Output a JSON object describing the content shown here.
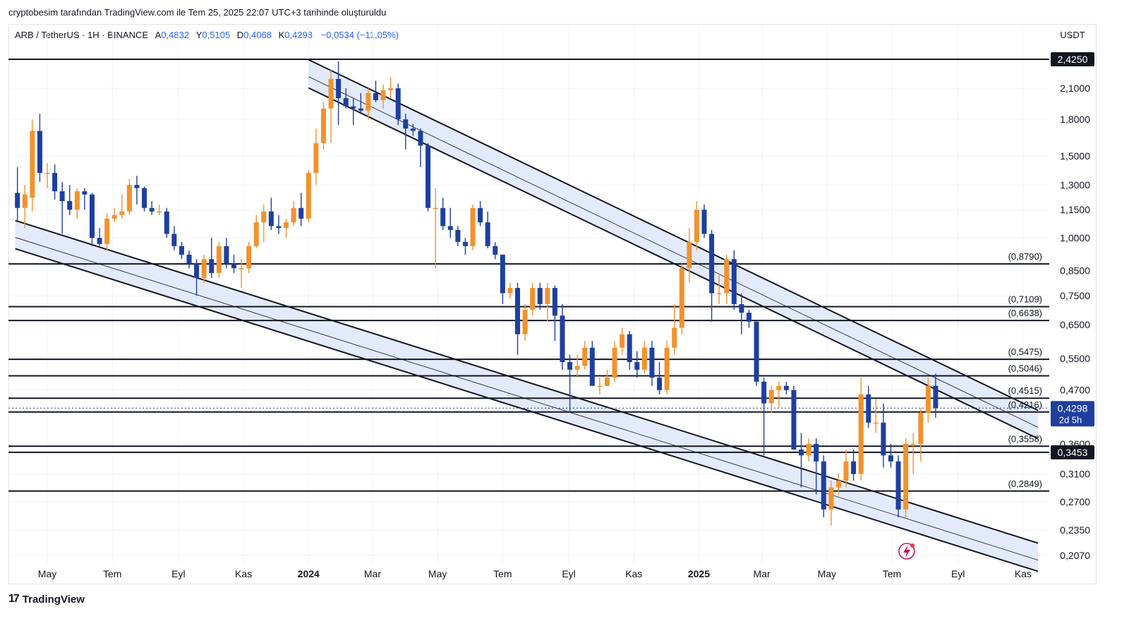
{
  "attribution": "cryptobesim tarafından TradingView.com ile Tem 25, 2025 22:07 UTC+3 tarihinde oluşturuldu",
  "legend": {
    "symbol": "ARB / TetherUS · 1H · BINANCE",
    "open_label": "A",
    "open_value": "0,4832",
    "high_label": "Y",
    "high_value": "0,5105",
    "low_label": "D",
    "low_value": "0,4068",
    "close_label": "K",
    "close_value": "0,4298",
    "change": "−0,0534 (−11,05%)"
  },
  "currency": "USDT",
  "footer": {
    "logo_mark": "17",
    "brand": "TradingView"
  },
  "colors": {
    "up": "#f2922d",
    "down": "#1e3fa0",
    "channel_fill": "#dde6fb",
    "line": "#131722",
    "price_tag": "#1e3fa0"
  },
  "chart_data": {
    "type": "candlestick",
    "scale": "log",
    "price_axis": {
      "ticks": [
        "2,1000",
        "1,8000",
        "1,5000",
        "1,3000",
        "1,1500",
        "1,0000",
        "0,8500",
        "0,7500",
        "0,6500",
        "0,5500",
        "0,4700",
        "0,3600",
        "0,3100",
        "0,2700",
        "0,2350",
        "0,2070"
      ],
      "tick_values": [
        2.1,
        1.8,
        1.5,
        1.3,
        1.15,
        1.0,
        0.85,
        0.75,
        0.65,
        0.55,
        0.47,
        0.36,
        0.31,
        0.27,
        0.235,
        0.207
      ]
    },
    "time_axis": {
      "labels": [
        "May",
        "Tem",
        "Eyl",
        "Kas",
        "2024",
        "Mar",
        "May",
        "Tem",
        "Eyl",
        "Kas",
        "2025",
        "Mar",
        "May",
        "Tem",
        "Eyl",
        "Kas"
      ],
      "bold": [
        false,
        false,
        false,
        false,
        true,
        false,
        false,
        false,
        false,
        false,
        true,
        false,
        false,
        false,
        false,
        false
      ]
    },
    "horizontal_levels": [
      {
        "value": 2.425,
        "label": "2,4250",
        "tagged": true
      },
      {
        "value": 0.879,
        "label": "(0,8790)"
      },
      {
        "value": 0.7109,
        "label": "(0,7109)"
      },
      {
        "value": 0.6638,
        "label": "(0,6638)"
      },
      {
        "value": 0.5475,
        "label": "(0,5475)"
      },
      {
        "value": 0.5046,
        "label": "(0,5046)"
      },
      {
        "value": 0.4515,
        "label": "(0,4515)"
      },
      {
        "value": 0.4216,
        "label": "(0,4216)"
      },
      {
        "value": 0.3558,
        "label": "(0,3558)"
      },
      {
        "value": 0.3453,
        "label": "0,3453",
        "tagged": true
      },
      {
        "value": 0.2849,
        "label": "(0,2849)"
      }
    ],
    "current_price": {
      "value": 0.4298,
      "label": "0,4298",
      "countdown": "2d 5h"
    },
    "channels": [
      {
        "name": "descending-resistance",
        "start": {
          "date": "2024-01-01",
          "price": 2.42
        },
        "end": {
          "date": "2025-11-15",
          "price": 0.425
        }
      },
      {
        "name": "descending-support",
        "start": {
          "date": "2023-04-01",
          "price": 1.09
        },
        "end": {
          "date": "2025-11-15",
          "price": 0.22
        }
      }
    ],
    "candles": [
      {
        "d": "2023-04-03",
        "o": 1.25,
        "h": 1.42,
        "l": 1.08,
        "c": 1.16
      },
      {
        "d": "2023-04-10",
        "o": 1.16,
        "h": 1.3,
        "l": 1.05,
        "c": 1.24
      },
      {
        "d": "2023-04-17",
        "o": 1.22,
        "h": 1.8,
        "l": 1.14,
        "c": 1.7
      },
      {
        "d": "2023-04-24",
        "o": 1.7,
        "h": 1.85,
        "l": 1.32,
        "c": 1.38
      },
      {
        "d": "2023-05-01",
        "o": 1.38,
        "h": 1.45,
        "l": 1.28,
        "c": 1.38
      },
      {
        "d": "2023-05-08",
        "o": 1.38,
        "h": 1.44,
        "l": 1.21,
        "c": 1.26
      },
      {
        "d": "2023-05-15",
        "o": 1.26,
        "h": 1.32,
        "l": 1.02,
        "c": 1.2
      },
      {
        "d": "2023-05-22",
        "o": 1.2,
        "h": 1.3,
        "l": 1.12,
        "c": 1.15
      },
      {
        "d": "2023-05-29",
        "o": 1.15,
        "h": 1.28,
        "l": 1.1,
        "c": 1.26
      },
      {
        "d": "2023-06-05",
        "o": 1.26,
        "h": 1.28,
        "l": 1.15,
        "c": 1.24
      },
      {
        "d": "2023-06-12",
        "o": 1.24,
        "h": 1.25,
        "l": 0.96,
        "c": 1.0
      },
      {
        "d": "2023-06-19",
        "o": 1.0,
        "h": 1.05,
        "l": 0.96,
        "c": 0.97
      },
      {
        "d": "2023-06-26",
        "o": 0.97,
        "h": 1.13,
        "l": 0.94,
        "c": 1.1
      },
      {
        "d": "2023-07-03",
        "o": 1.1,
        "h": 1.16,
        "l": 1.08,
        "c": 1.12
      },
      {
        "d": "2023-07-10",
        "o": 1.12,
        "h": 1.24,
        "l": 1.1,
        "c": 1.14
      },
      {
        "d": "2023-07-17",
        "o": 1.14,
        "h": 1.34,
        "l": 1.12,
        "c": 1.3
      },
      {
        "d": "2023-07-24",
        "o": 1.3,
        "h": 1.36,
        "l": 1.18,
        "c": 1.28
      },
      {
        "d": "2023-07-31",
        "o": 1.28,
        "h": 1.29,
        "l": 1.14,
        "c": 1.16
      },
      {
        "d": "2023-08-07",
        "o": 1.16,
        "h": 1.2,
        "l": 1.12,
        "c": 1.14
      },
      {
        "d": "2023-08-14",
        "o": 1.14,
        "h": 1.18,
        "l": 1.12,
        "c": 1.14
      },
      {
        "d": "2023-08-21",
        "o": 1.14,
        "h": 1.16,
        "l": 1.0,
        "c": 1.02
      },
      {
        "d": "2023-08-28",
        "o": 1.02,
        "h": 1.06,
        "l": 0.94,
        "c": 0.96
      },
      {
        "d": "2023-09-04",
        "o": 0.96,
        "h": 0.98,
        "l": 0.9,
        "c": 0.92
      },
      {
        "d": "2023-09-11",
        "o": 0.92,
        "h": 0.94,
        "l": 0.86,
        "c": 0.88
      },
      {
        "d": "2023-09-18",
        "o": 0.88,
        "h": 0.9,
        "l": 0.75,
        "c": 0.82
      },
      {
        "d": "2023-09-25",
        "o": 0.82,
        "h": 0.92,
        "l": 0.8,
        "c": 0.9
      },
      {
        "d": "2023-10-02",
        "o": 0.9,
        "h": 1.0,
        "l": 0.82,
        "c": 0.84
      },
      {
        "d": "2023-10-09",
        "o": 0.84,
        "h": 0.98,
        "l": 0.82,
        "c": 0.96
      },
      {
        "d": "2023-10-16",
        "o": 0.96,
        "h": 1.0,
        "l": 0.86,
        "c": 0.88
      },
      {
        "d": "2023-10-23",
        "o": 0.88,
        "h": 0.92,
        "l": 0.84,
        "c": 0.86
      },
      {
        "d": "2023-10-30",
        "o": 0.86,
        "h": 0.9,
        "l": 0.78,
        "c": 0.86
      },
      {
        "d": "2023-11-06",
        "o": 0.86,
        "h": 0.98,
        "l": 0.84,
        "c": 0.96
      },
      {
        "d": "2023-11-13",
        "o": 0.96,
        "h": 1.12,
        "l": 0.95,
        "c": 1.08
      },
      {
        "d": "2023-11-20",
        "o": 1.08,
        "h": 1.18,
        "l": 0.98,
        "c": 1.14
      },
      {
        "d": "2023-11-27",
        "o": 1.14,
        "h": 1.22,
        "l": 1.04,
        "c": 1.06
      },
      {
        "d": "2023-12-04",
        "o": 1.06,
        "h": 1.12,
        "l": 1.02,
        "c": 1.05
      },
      {
        "d": "2023-12-11",
        "o": 1.05,
        "h": 1.1,
        "l": 1.0,
        "c": 1.08
      },
      {
        "d": "2023-12-18",
        "o": 1.08,
        "h": 1.2,
        "l": 1.06,
        "c": 1.16
      },
      {
        "d": "2023-12-25",
        "o": 1.16,
        "h": 1.25,
        "l": 1.06,
        "c": 1.1
      },
      {
        "d": "2024-01-01",
        "o": 1.1,
        "h": 1.4,
        "l": 1.08,
        "c": 1.38
      },
      {
        "d": "2024-01-08",
        "o": 1.38,
        "h": 1.72,
        "l": 1.3,
        "c": 1.6
      },
      {
        "d": "2024-01-15",
        "o": 1.6,
        "h": 1.96,
        "l": 1.55,
        "c": 1.9
      },
      {
        "d": "2024-01-22",
        "o": 1.9,
        "h": 2.3,
        "l": 1.6,
        "c": 2.2
      },
      {
        "d": "2024-01-29",
        "o": 2.2,
        "h": 2.4,
        "l": 1.75,
        "c": 2.0
      },
      {
        "d": "2024-02-05",
        "o": 2.0,
        "h": 2.1,
        "l": 1.9,
        "c": 1.92
      },
      {
        "d": "2024-02-12",
        "o": 1.92,
        "h": 2.0,
        "l": 1.75,
        "c": 1.9
      },
      {
        "d": "2024-02-19",
        "o": 1.9,
        "h": 2.05,
        "l": 1.85,
        "c": 1.88
      },
      {
        "d": "2024-02-26",
        "o": 1.88,
        "h": 2.1,
        "l": 1.8,
        "c": 2.05
      },
      {
        "d": "2024-03-04",
        "o": 2.05,
        "h": 2.18,
        "l": 1.96,
        "c": 1.98
      },
      {
        "d": "2024-03-11",
        "o": 1.98,
        "h": 2.14,
        "l": 1.9,
        "c": 2.08
      },
      {
        "d": "2024-03-18",
        "o": 2.08,
        "h": 2.22,
        "l": 2.0,
        "c": 2.1
      },
      {
        "d": "2024-03-25",
        "o": 2.1,
        "h": 2.15,
        "l": 1.75,
        "c": 1.8
      },
      {
        "d": "2024-04-01",
        "o": 1.8,
        "h": 1.85,
        "l": 1.55,
        "c": 1.72
      },
      {
        "d": "2024-04-08",
        "o": 1.72,
        "h": 1.76,
        "l": 1.66,
        "c": 1.7
      },
      {
        "d": "2024-04-15",
        "o": 1.7,
        "h": 1.72,
        "l": 1.42,
        "c": 1.58
      },
      {
        "d": "2024-04-22",
        "o": 1.58,
        "h": 1.6,
        "l": 1.14,
        "c": 1.16
      },
      {
        "d": "2024-04-29",
        "o": 1.16,
        "h": 1.28,
        "l": 0.86,
        "c": 1.16
      },
      {
        "d": "2024-05-06",
        "o": 1.16,
        "h": 1.22,
        "l": 1.04,
        "c": 1.06
      },
      {
        "d": "2024-05-13",
        "o": 1.06,
        "h": 1.16,
        "l": 1.0,
        "c": 1.04
      },
      {
        "d": "2024-05-20",
        "o": 1.04,
        "h": 1.06,
        "l": 0.96,
        "c": 0.98
      },
      {
        "d": "2024-05-27",
        "o": 0.98,
        "h": 1.0,
        "l": 0.92,
        "c": 0.96
      },
      {
        "d": "2024-06-03",
        "o": 0.96,
        "h": 1.18,
        "l": 0.94,
        "c": 1.16
      },
      {
        "d": "2024-06-10",
        "o": 1.16,
        "h": 1.2,
        "l": 1.06,
        "c": 1.08
      },
      {
        "d": "2024-06-17",
        "o": 1.08,
        "h": 1.14,
        "l": 0.95,
        "c": 0.96
      },
      {
        "d": "2024-06-24",
        "o": 0.96,
        "h": 0.98,
        "l": 0.9,
        "c": 0.92
      },
      {
        "d": "2024-07-01",
        "o": 0.92,
        "h": 0.92,
        "l": 0.72,
        "c": 0.76
      },
      {
        "d": "2024-07-08",
        "o": 0.76,
        "h": 0.8,
        "l": 0.74,
        "c": 0.78
      },
      {
        "d": "2024-07-15",
        "o": 0.78,
        "h": 0.8,
        "l": 0.56,
        "c": 0.62
      },
      {
        "d": "2024-07-22",
        "o": 0.62,
        "h": 0.72,
        "l": 0.6,
        "c": 0.7
      },
      {
        "d": "2024-07-29",
        "o": 0.7,
        "h": 0.8,
        "l": 0.68,
        "c": 0.78
      },
      {
        "d": "2024-08-05",
        "o": 0.78,
        "h": 0.8,
        "l": 0.7,
        "c": 0.72
      },
      {
        "d": "2024-08-12",
        "o": 0.72,
        "h": 0.8,
        "l": 0.66,
        "c": 0.78
      },
      {
        "d": "2024-08-19",
        "o": 0.78,
        "h": 0.79,
        "l": 0.6,
        "c": 0.68
      },
      {
        "d": "2024-08-26",
        "o": 0.68,
        "h": 0.72,
        "l": 0.52,
        "c": 0.54
      },
      {
        "d": "2024-09-02",
        "o": 0.54,
        "h": 0.56,
        "l": 0.42,
        "c": 0.52
      },
      {
        "d": "2024-09-09",
        "o": 0.52,
        "h": 0.56,
        "l": 0.5,
        "c": 0.53
      },
      {
        "d": "2024-09-16",
        "o": 0.53,
        "h": 0.6,
        "l": 0.52,
        "c": 0.58
      },
      {
        "d": "2024-09-23",
        "o": 0.58,
        "h": 0.6,
        "l": 0.48,
        "c": 0.48
      },
      {
        "d": "2024-09-30",
        "o": 0.48,
        "h": 0.5,
        "l": 0.46,
        "c": 0.48
      },
      {
        "d": "2024-10-07",
        "o": 0.48,
        "h": 0.52,
        "l": 0.48,
        "c": 0.5
      },
      {
        "d": "2024-10-14",
        "o": 0.5,
        "h": 0.6,
        "l": 0.49,
        "c": 0.58
      },
      {
        "d": "2024-10-21",
        "o": 0.58,
        "h": 0.64,
        "l": 0.56,
        "c": 0.62
      },
      {
        "d": "2024-10-28",
        "o": 0.62,
        "h": 0.63,
        "l": 0.52,
        "c": 0.54
      },
      {
        "d": "2024-11-04",
        "o": 0.54,
        "h": 0.57,
        "l": 0.5,
        "c": 0.52
      },
      {
        "d": "2024-11-11",
        "o": 0.52,
        "h": 0.6,
        "l": 0.51,
        "c": 0.58
      },
      {
        "d": "2024-11-18",
        "o": 0.58,
        "h": 0.6,
        "l": 0.48,
        "c": 0.5
      },
      {
        "d": "2024-11-25",
        "o": 0.5,
        "h": 0.54,
        "l": 0.46,
        "c": 0.47
      },
      {
        "d": "2024-12-02",
        "o": 0.47,
        "h": 0.6,
        "l": 0.46,
        "c": 0.58
      },
      {
        "d": "2024-12-09",
        "o": 0.58,
        "h": 0.72,
        "l": 0.56,
        "c": 0.64
      },
      {
        "d": "2024-12-16",
        "o": 0.64,
        "h": 0.88,
        "l": 0.62,
        "c": 0.86
      },
      {
        "d": "2024-12-23",
        "o": 0.86,
        "h": 1.05,
        "l": 0.8,
        "c": 0.98
      },
      {
        "d": "2024-12-30",
        "o": 0.98,
        "h": 1.2,
        "l": 0.94,
        "c": 1.15
      },
      {
        "d": "2025-01-06",
        "o": 1.15,
        "h": 1.18,
        "l": 1.0,
        "c": 1.02
      },
      {
        "d": "2025-01-13",
        "o": 1.02,
        "h": 1.04,
        "l": 0.66,
        "c": 0.76
      },
      {
        "d": "2025-01-20",
        "o": 0.76,
        "h": 0.84,
        "l": 0.72,
        "c": 0.76
      },
      {
        "d": "2025-01-27",
        "o": 0.76,
        "h": 0.92,
        "l": 0.72,
        "c": 0.9
      },
      {
        "d": "2025-02-03",
        "o": 0.9,
        "h": 0.94,
        "l": 0.7,
        "c": 0.72
      },
      {
        "d": "2025-02-10",
        "o": 0.72,
        "h": 0.76,
        "l": 0.62,
        "c": 0.69
      },
      {
        "d": "2025-02-17",
        "o": 0.69,
        "h": 0.7,
        "l": 0.64,
        "c": 0.66
      },
      {
        "d": "2025-02-24",
        "o": 0.66,
        "h": 0.66,
        "l": 0.48,
        "c": 0.49
      },
      {
        "d": "2025-03-03",
        "o": 0.49,
        "h": 0.5,
        "l": 0.34,
        "c": 0.44
      },
      {
        "d": "2025-03-10",
        "o": 0.44,
        "h": 0.48,
        "l": 0.42,
        "c": 0.47
      },
      {
        "d": "2025-03-17",
        "o": 0.47,
        "h": 0.49,
        "l": 0.43,
        "c": 0.48
      },
      {
        "d": "2025-03-24",
        "o": 0.48,
        "h": 0.49,
        "l": 0.46,
        "c": 0.47
      },
      {
        "d": "2025-03-31",
        "o": 0.47,
        "h": 0.48,
        "l": 0.35,
        "c": 0.35
      },
      {
        "d": "2025-04-07",
        "o": 0.35,
        "h": 0.38,
        "l": 0.29,
        "c": 0.34
      },
      {
        "d": "2025-04-14",
        "o": 0.34,
        "h": 0.37,
        "l": 0.33,
        "c": 0.36
      },
      {
        "d": "2025-04-21",
        "o": 0.36,
        "h": 0.37,
        "l": 0.28,
        "c": 0.33
      },
      {
        "d": "2025-04-28",
        "o": 0.33,
        "h": 0.34,
        "l": 0.25,
        "c": 0.26
      },
      {
        "d": "2025-05-05",
        "o": 0.26,
        "h": 0.3,
        "l": 0.24,
        "c": 0.29
      },
      {
        "d": "2025-05-12",
        "o": 0.29,
        "h": 0.31,
        "l": 0.28,
        "c": 0.3
      },
      {
        "d": "2025-05-19",
        "o": 0.3,
        "h": 0.35,
        "l": 0.29,
        "c": 0.33
      },
      {
        "d": "2025-05-26",
        "o": 0.33,
        "h": 0.35,
        "l": 0.3,
        "c": 0.31
      },
      {
        "d": "2025-06-02",
        "o": 0.31,
        "h": 0.5,
        "l": 0.3,
        "c": 0.46
      },
      {
        "d": "2025-06-09",
        "o": 0.46,
        "h": 0.48,
        "l": 0.39,
        "c": 0.4
      },
      {
        "d": "2025-06-16",
        "o": 0.4,
        "h": 0.45,
        "l": 0.38,
        "c": 0.4
      },
      {
        "d": "2025-06-23",
        "o": 0.4,
        "h": 0.44,
        "l": 0.32,
        "c": 0.34
      },
      {
        "d": "2025-06-30",
        "o": 0.34,
        "h": 0.36,
        "l": 0.32,
        "c": 0.33
      },
      {
        "d": "2025-07-07",
        "o": 0.33,
        "h": 0.34,
        "l": 0.25,
        "c": 0.26
      },
      {
        "d": "2025-07-14",
        "o": 0.26,
        "h": 0.37,
        "l": 0.25,
        "c": 0.36
      },
      {
        "d": "2025-07-21",
        "o": 0.36,
        "h": 0.38,
        "l": 0.31,
        "c": 0.36
      },
      {
        "d": "2025-07-28",
        "o": 0.36,
        "h": 0.43,
        "l": 0.33,
        "c": 0.42
      },
      {
        "d": "2025-08-04",
        "o": 0.42,
        "h": 0.5,
        "l": 0.4,
        "c": 0.48
      },
      {
        "d": "2025-08-11",
        "o": 0.48,
        "h": 0.51,
        "l": 0.41,
        "c": 0.43
      }
    ]
  }
}
